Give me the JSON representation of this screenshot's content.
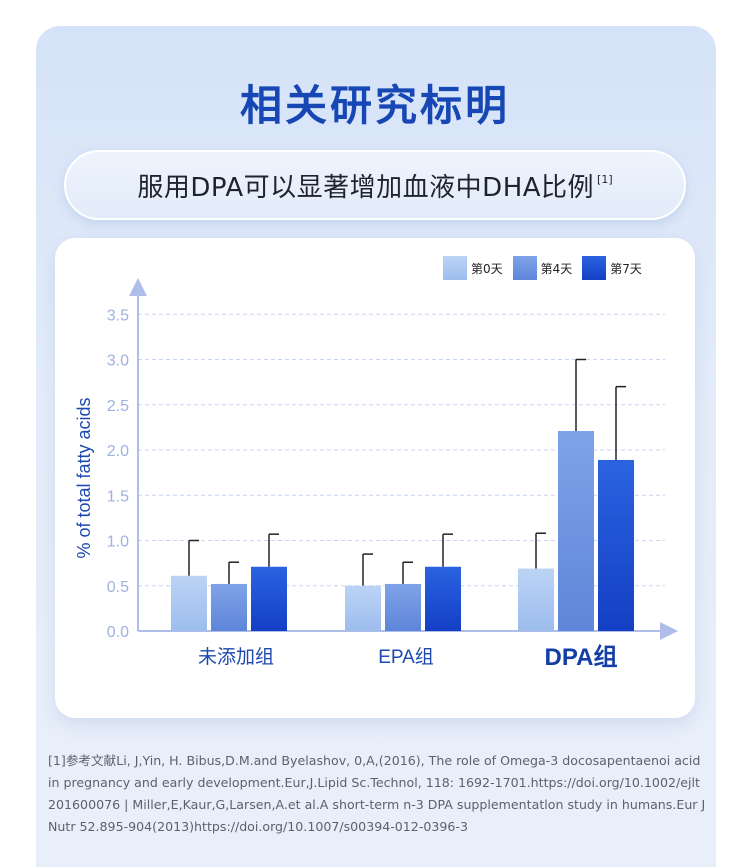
{
  "title": "相关研究标明",
  "subtitle": "服用DPA可以显著增加血液中DHA比例",
  "subtitle_ref": "[1]",
  "colors": {
    "title": "#1747b4",
    "axis": "#aebee8",
    "tick": "#9fb1de",
    "series": [
      "#a9c7f2",
      "#6d94e2",
      "#1c54d6"
    ]
  },
  "chart_data": {
    "type": "bar",
    "categories": [
      "未添加组",
      "EPA组",
      "DPA组"
    ],
    "series": [
      {
        "name": "第0天",
        "values": [
          0.61,
          0.5,
          0.69
        ],
        "error_upper": [
          1.0,
          0.85,
          1.08
        ]
      },
      {
        "name": "第4天",
        "values": [
          0.52,
          0.52,
          2.21
        ],
        "error_upper": [
          0.76,
          0.76,
          3.0
        ]
      },
      {
        "name": "第7天",
        "values": [
          0.71,
          0.71,
          1.89
        ],
        "error_upper": [
          1.07,
          1.07,
          2.7
        ]
      }
    ],
    "ylabel": "% of total fatty acids",
    "ylim": [
      0,
      3.5
    ],
    "yticks": [
      "0.0",
      "0.5",
      "1.0",
      "1.5",
      "2.0",
      "2.5",
      "3.0",
      "3.5"
    ],
    "grid": true,
    "legend_position": "top-right"
  },
  "references": "[1]参考文献Li, J,Yin, H. Bibus,D.M.and Byelashov, 0,A,(2016), The role of Omega-3 docosapentaenoi acid in pregnancy and early development.Eur,J.Lipid Sc.Technol, 118: 1692-1701.https://doi.org/10.1002/ejlt 201600076 | Miller,E,Kaur,G,Larsen,A.et al.A short-term n-3 DPA supplementatlon study in humans.Eur J Nutr 52.895-904(2013)https://doi.org/10.1007/s00394-012-0396-3"
}
